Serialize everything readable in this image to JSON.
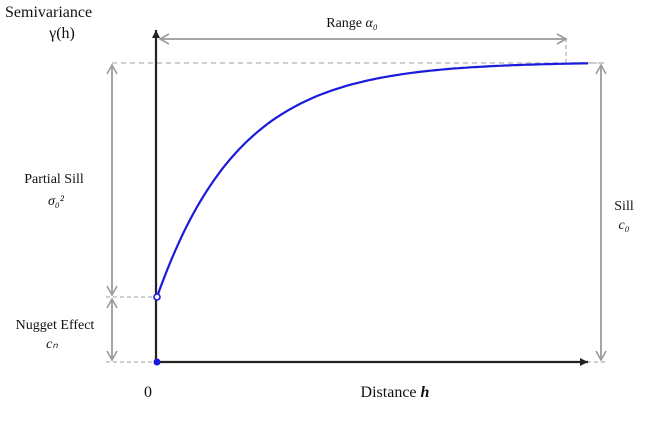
{
  "y_axis": {
    "title_line1": "Semivariance",
    "title_line2": "γ(h)"
  },
  "x_axis": {
    "title": "Distance",
    "title_var": "h",
    "origin_tick": "0"
  },
  "range": {
    "label": "Range",
    "symbol": "α₀"
  },
  "partial_sill": {
    "label": "Partial Sill",
    "symbol": "σ₀²"
  },
  "sill": {
    "label": "Sill",
    "symbol": "c₀"
  },
  "nugget": {
    "label": "Nugget Effect",
    "symbol": "cₙ"
  },
  "colors": {
    "curve": "#1a1adb",
    "axis": "#222222",
    "dim_arrow": "#9a9a9a",
    "guide": "#bdbdbd"
  }
}
